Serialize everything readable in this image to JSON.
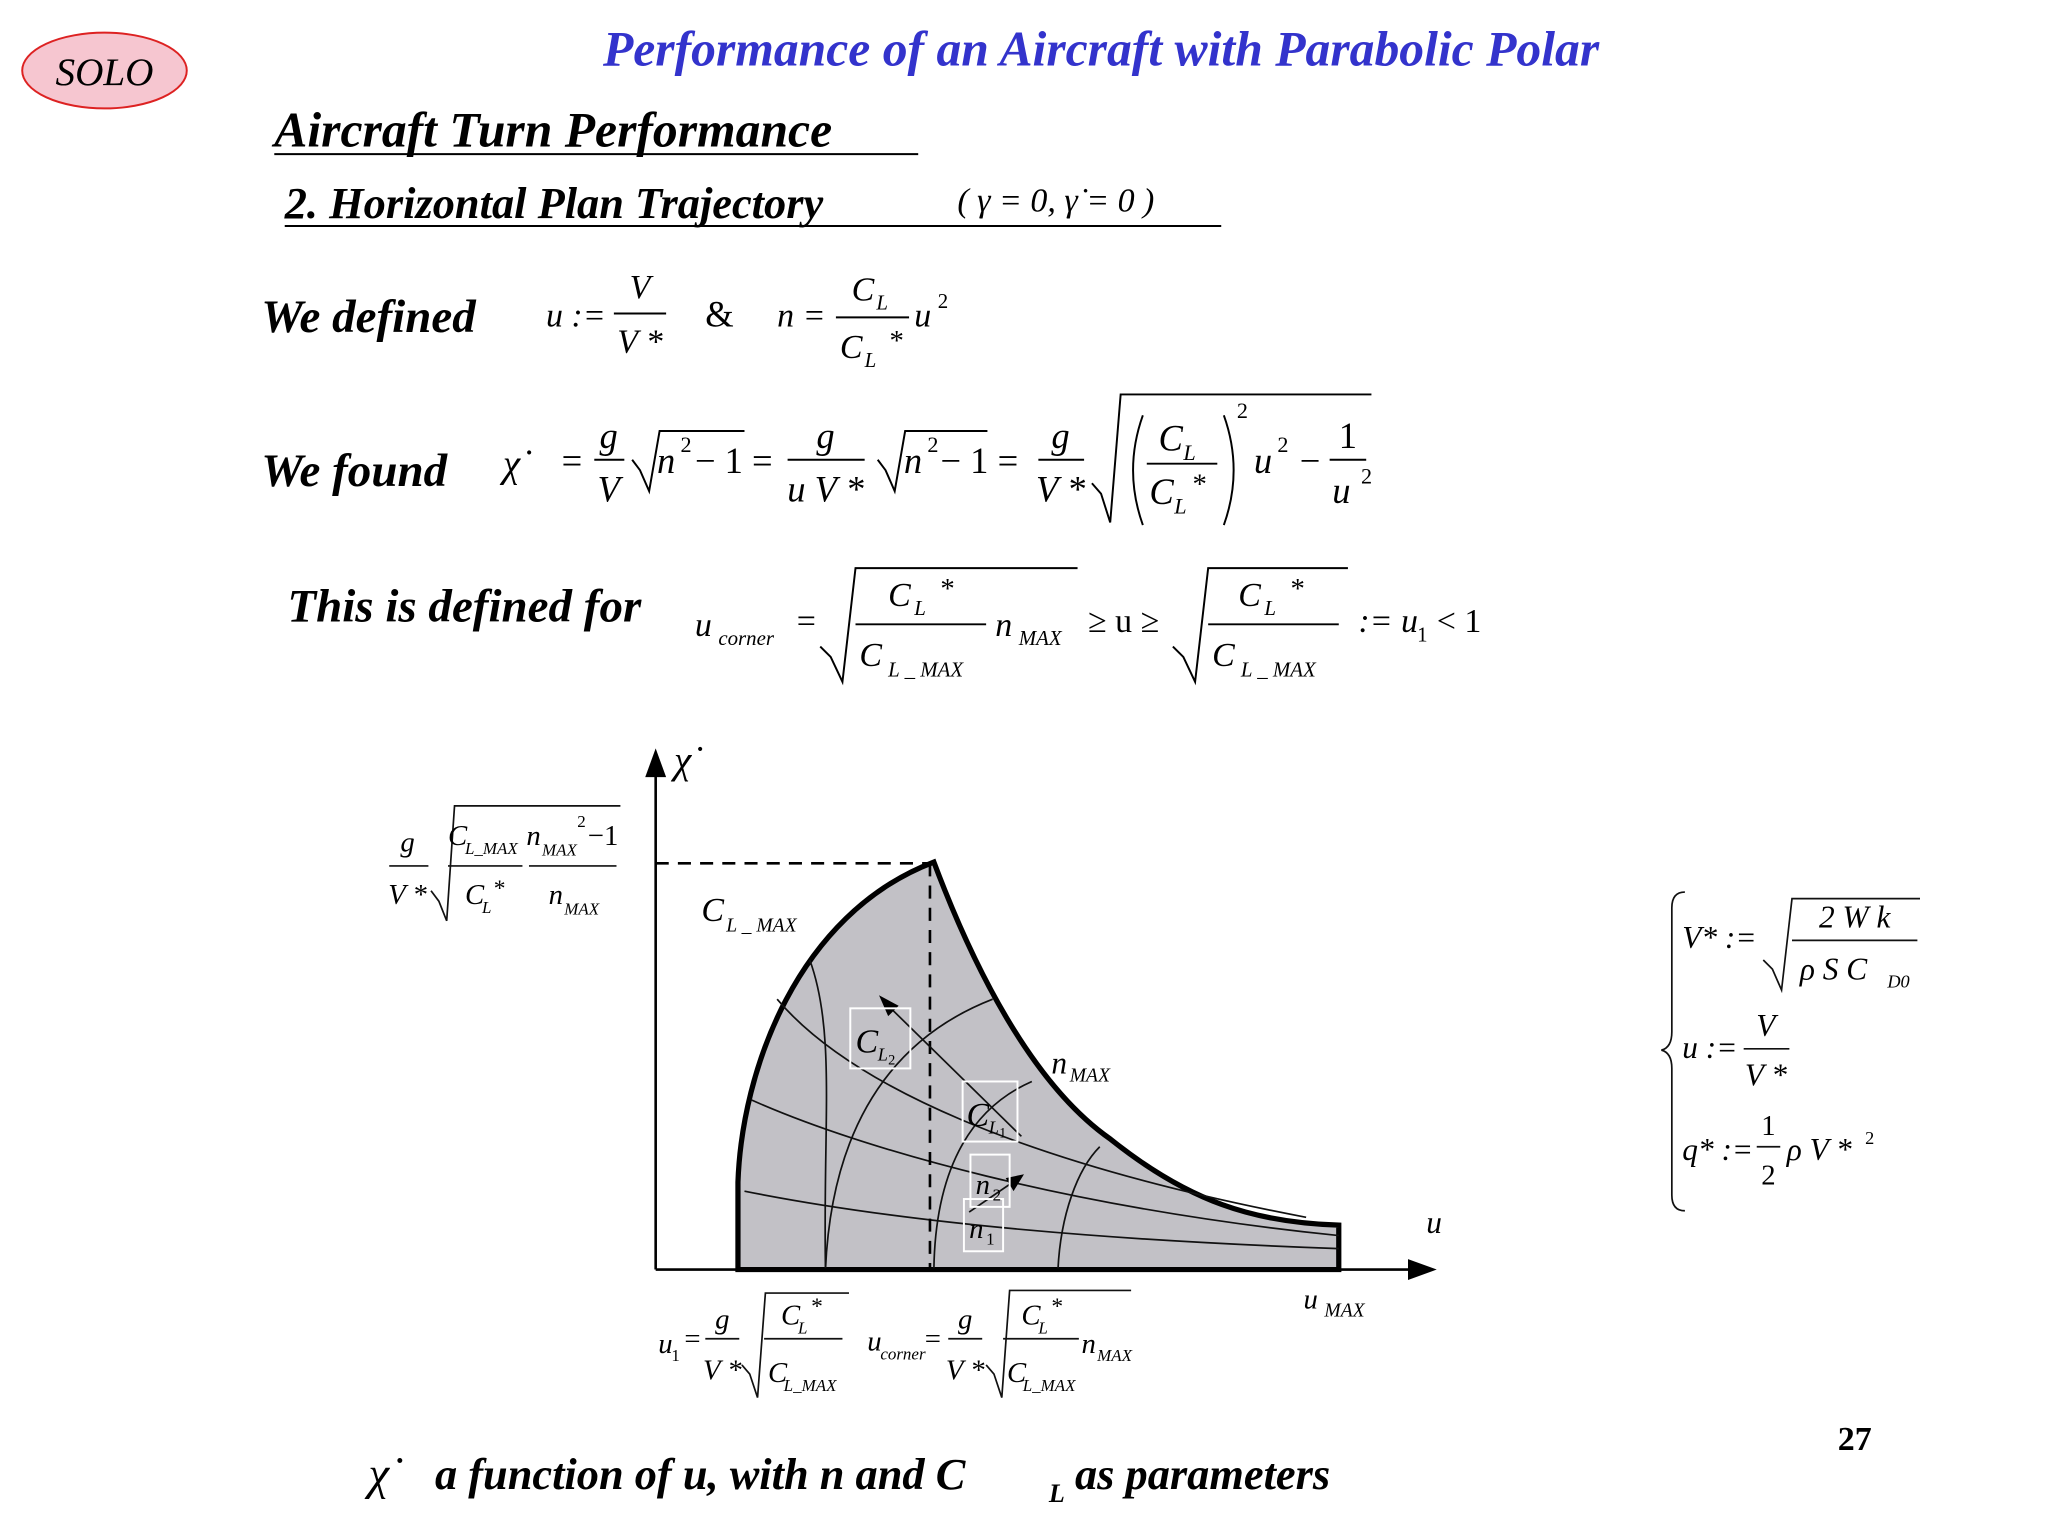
{
  "logo": "SOLO",
  "title": "Performance of an Aircraft with Parabolic Polar",
  "heading": "Aircraft Turn Performance",
  "subheading": "2. Horizontal Plan Trajectory",
  "subheading_condition": "( γ = 0, γ̇ = 0 )",
  "defined": {
    "label": "We defined",
    "u_def": [
      "u :=",
      "V",
      "V *"
    ],
    "and": "&",
    "n_def": [
      "n =",
      "C",
      "L",
      "C",
      "L",
      "*",
      "u",
      "2"
    ]
  },
  "found": {
    "label": "We found",
    "formula": [
      "χ̇",
      "=",
      "g",
      "V",
      "n",
      "2",
      "− 1 =",
      "g",
      "u V *",
      "n",
      "2",
      "− 1 =",
      "g",
      "V *",
      "C",
      "L",
      "C",
      "L",
      "*",
      "2",
      "u",
      "2",
      "−",
      "1",
      "u",
      "2"
    ]
  },
  "domain": {
    "label": "This is defined for",
    "formula": [
      "u",
      "corner",
      "=",
      "C",
      "L",
      "*",
      "C",
      "L _ MAX",
      "n",
      "MAX",
      "≥ u ≥",
      "C",
      "L",
      "*",
      "C",
      "L _ MAX",
      ":= u",
      "1",
      "< 1"
    ]
  },
  "graph": {
    "y_label": "χ̇",
    "x_label": "u",
    "u_max": [
      "u",
      "MAX"
    ],
    "cl_max": [
      "C",
      "L _ MAX"
    ],
    "n_max": [
      "n",
      "MAX"
    ],
    "cl2": [
      "C",
      "L",
      "2"
    ],
    "cl1": [
      "C",
      "L",
      "1"
    ],
    "n2": [
      "n",
      "2"
    ],
    "n1": [
      "n",
      "1"
    ],
    "y_value": [
      "g",
      "V *",
      "C",
      "L_MAX",
      "n",
      "MAX",
      "2",
      "−1",
      "C",
      "L",
      "*",
      "n",
      "MAX"
    ],
    "u1": [
      "u",
      "1",
      "=",
      "g",
      "V *",
      "C",
      "L",
      "*",
      "C",
      "L_MAX"
    ],
    "u_corner": [
      "u",
      "corner",
      "=",
      "g",
      "V *",
      "C",
      "L",
      "*",
      "C",
      "L_MAX",
      "n",
      "MAX"
    ]
  },
  "definitions_box": {
    "v_star": [
      "V* :=",
      "2 W k",
      "ρ S C",
      "D0"
    ],
    "u": [
      "u :=",
      "V",
      "V *"
    ],
    "q_star": [
      "q* :=",
      "1",
      "2",
      "ρ V *",
      "2"
    ]
  },
  "footer": [
    "χ̇",
    "a function of u, with n and C",
    "L",
    "as parameters"
  ],
  "page_number": "27"
}
